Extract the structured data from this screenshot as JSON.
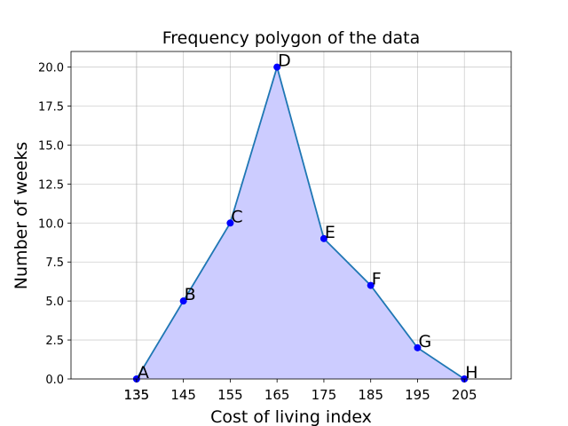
{
  "chart_data": {
    "type": "line",
    "title": "Frequency polygon of the data",
    "xlabel": "Cost of living index",
    "ylabel": "Number of weeks",
    "x": [
      135,
      145,
      155,
      165,
      175,
      185,
      195,
      205
    ],
    "y": [
      0,
      5,
      10,
      20,
      9,
      6,
      2,
      0
    ],
    "point_labels": [
      "A",
      "B",
      "C",
      "D",
      "E",
      "F",
      "G",
      "H"
    ],
    "xticks": [
      "135",
      "135",
      "145",
      "155",
      "165",
      "175",
      "185",
      "195",
      "205"
    ],
    "xtick_values": [
      135,
      135,
      145,
      155,
      165,
      175,
      185,
      195,
      205
    ],
    "yticks": [
      "0.0",
      "2.5",
      "5.0",
      "7.5",
      "10.0",
      "12.5",
      "15.0",
      "17.5",
      "20.0"
    ],
    "ytick_values": [
      0,
      2.5,
      5,
      7.5,
      10,
      12.5,
      15,
      17.5,
      20
    ],
    "xlim": [
      121,
      215
    ],
    "ylim": [
      0,
      21
    ],
    "grid": true,
    "fill": true,
    "colors": {
      "line": "#1f77b4",
      "fill": "#ccccff",
      "marker": "#0000ff"
    }
  }
}
